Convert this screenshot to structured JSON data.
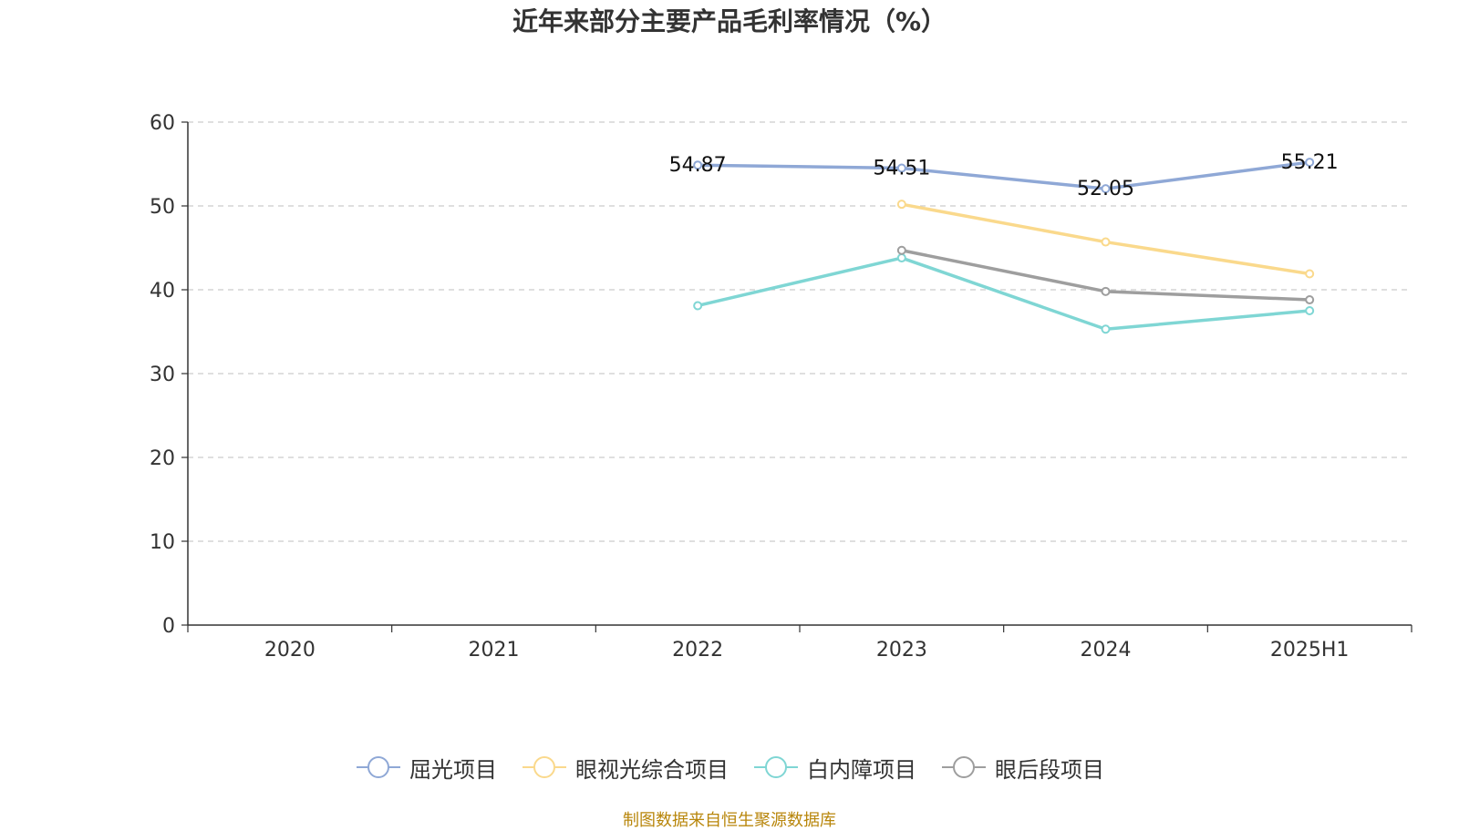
{
  "chart_data": {
    "type": "line",
    "title": "近年来部分主要产品毛利率情况（%）",
    "categories": [
      "2020",
      "2021",
      "2022",
      "2023",
      "2024",
      "2025H1"
    ],
    "ylim": [
      0,
      60
    ],
    "yticks": [
      0,
      10,
      20,
      30,
      40,
      50,
      60
    ],
    "grid": true,
    "legend_position": "bottom",
    "series": [
      {
        "name": "屈光项目",
        "color": "#8fa8d6",
        "values": [
          null,
          null,
          54.87,
          54.51,
          52.05,
          55.21
        ],
        "labels": [
          "",
          "",
          "54.87",
          "54.51",
          "52.05",
          "55.21"
        ]
      },
      {
        "name": "眼视光综合项目",
        "color": "#fad98c",
        "values": [
          null,
          null,
          null,
          50.2,
          45.7,
          41.9
        ]
      },
      {
        "name": "白内障项目",
        "color": "#7fd6d4",
        "values": [
          null,
          null,
          38.1,
          43.8,
          35.3,
          37.5
        ]
      },
      {
        "name": "眼后段项目",
        "color": "#9e9e9e",
        "values": [
          null,
          null,
          null,
          44.7,
          39.8,
          38.8
        ]
      }
    ]
  },
  "source": "制图数据来自恒生聚源数据库"
}
